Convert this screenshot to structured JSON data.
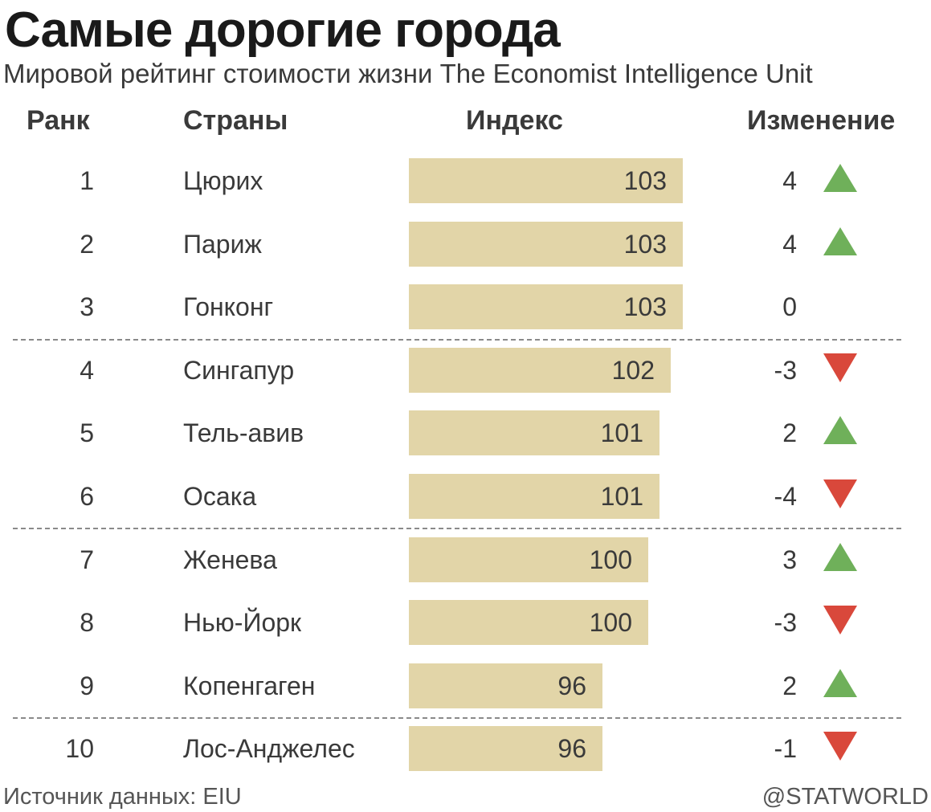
{
  "title": "Самые дорогие города",
  "subtitle": "Мировой рейтинг стоимости жизни The Economist Intelligence Unit",
  "headers": {
    "rank": "Ранк",
    "country": "Страны",
    "index": "Индекс",
    "change": "Изменение"
  },
  "footer": {
    "source": "Источник данных: EIU",
    "credit": "@STATWORLD"
  },
  "colors": {
    "bar": "#e2d5a8",
    "up": "#6fb05a",
    "down": "#d9483b"
  },
  "chart_data": {
    "type": "table",
    "columns": [
      "Ранк",
      "Страны",
      "Индекс",
      "Изменение"
    ],
    "rows": [
      {
        "rank": 1,
        "city": "Цюрих",
        "index": 103,
        "change": 4,
        "direction": "up"
      },
      {
        "rank": 2,
        "city": "Париж",
        "index": 103,
        "change": 4,
        "direction": "up"
      },
      {
        "rank": 3,
        "city": "Гонконг",
        "index": 103,
        "change": 0,
        "direction": "none"
      },
      {
        "rank": 4,
        "city": "Сингапур",
        "index": 102,
        "change": -3,
        "direction": "down"
      },
      {
        "rank": 5,
        "city": "Тель-авив",
        "index": 101,
        "change": 2,
        "direction": "up"
      },
      {
        "rank": 6,
        "city": "Осака",
        "index": 101,
        "change": -4,
        "direction": "down"
      },
      {
        "rank": 7,
        "city": "Женева",
        "index": 100,
        "change": 3,
        "direction": "up"
      },
      {
        "rank": 8,
        "city": "Нью-Йорк",
        "index": 100,
        "change": -3,
        "direction": "down"
      },
      {
        "rank": 9,
        "city": "Копенгаген",
        "index": 96,
        "change": 2,
        "direction": "up"
      },
      {
        "rank": 10,
        "city": "Лос-Анджелес",
        "index": 96,
        "change": -1,
        "direction": "down"
      }
    ],
    "separators_after_rank": [
      3,
      6,
      9
    ]
  }
}
